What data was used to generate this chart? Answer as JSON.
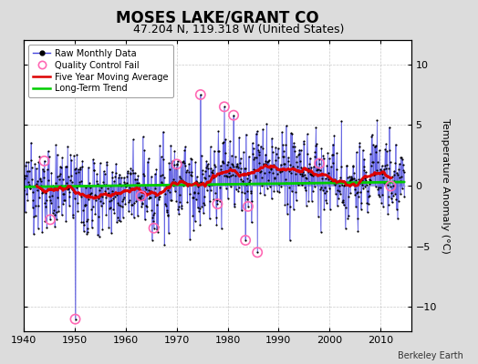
{
  "title": "MOSES LAKE/GRANT CO",
  "subtitle": "47.204 N, 119.318 W (United States)",
  "ylabel": "Temperature Anomaly (°C)",
  "credit": "Berkeley Earth",
  "xlim": [
    1940,
    2016
  ],
  "ylim": [
    -12,
    12
  ],
  "yticks": [
    -10,
    -5,
    0,
    5,
    10
  ],
  "xticks": [
    1940,
    1950,
    1960,
    1970,
    1980,
    1990,
    2000,
    2010
  ],
  "start_year": 1940,
  "bg_color": "#dcdcdc",
  "plot_bg_color": "#ffffff",
  "raw_line_color": "#4444dd",
  "raw_dot_color": "#000000",
  "ma_color": "#dd0000",
  "trend_color": "#00cc00",
  "qc_color": "#ff69b4",
  "title_fontsize": 12,
  "subtitle_fontsize": 9,
  "tick_fontsize": 8,
  "ylabel_fontsize": 8,
  "legend_fontsize": 7,
  "credit_fontsize": 7
}
